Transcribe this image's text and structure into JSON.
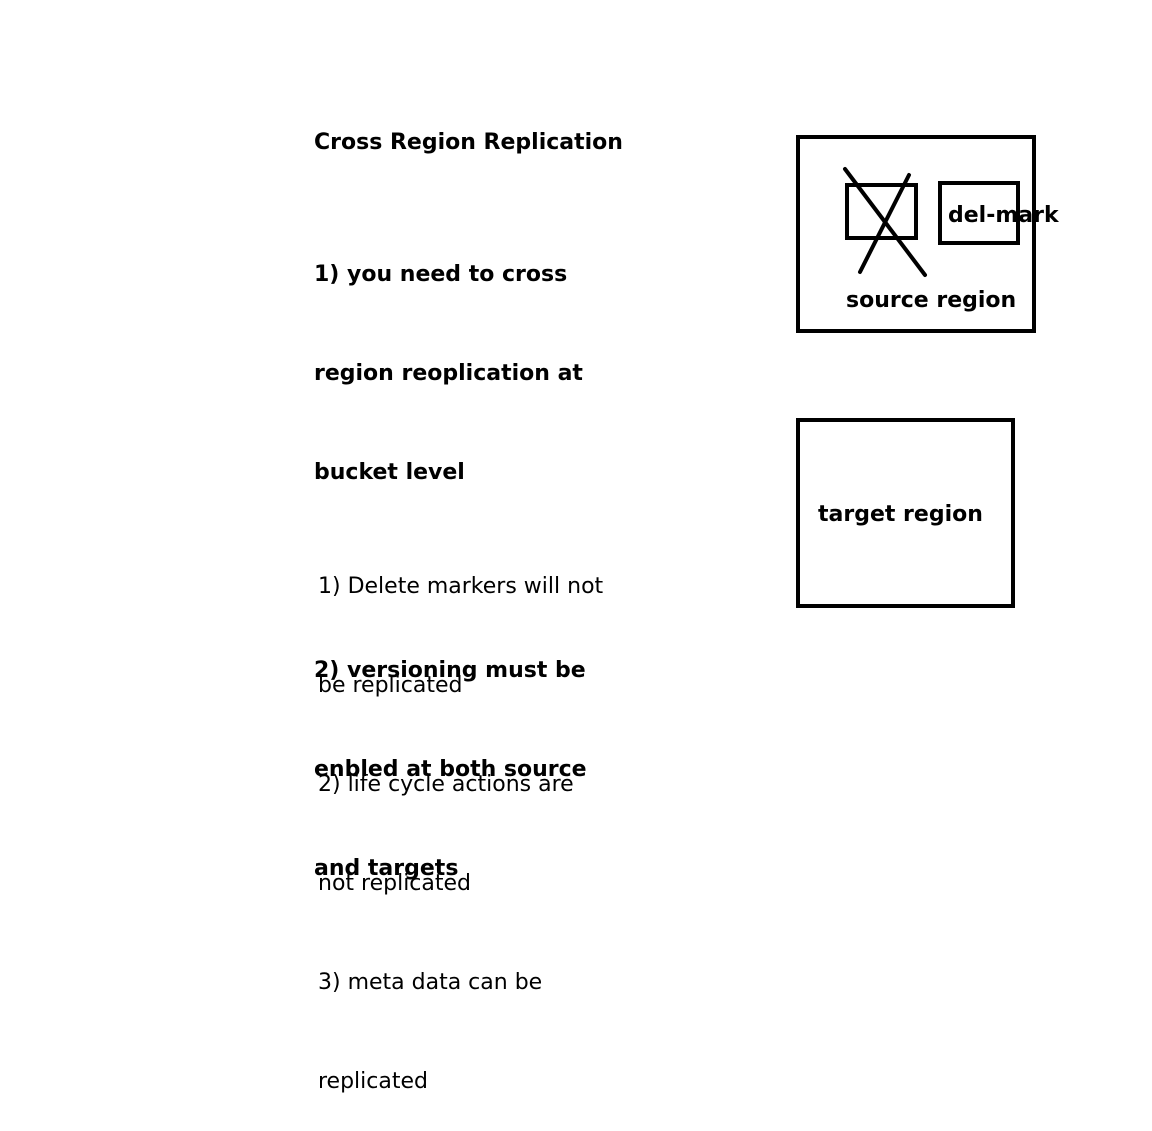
{
  "title": "Cross Region Replication",
  "bold_notes": [
    [
      "1) you need to cross",
      "region reoplication at",
      "bucket level"
    ],
    [
      "2) versioning must be",
      "enbled at both source",
      "and targets"
    ]
  ],
  "plain_notes": [
    "1) Delete markers will not",
    "be replicated",
    "2) life cycle actions are",
    "not replicated",
    "3) meta data can be",
    "replicated"
  ],
  "diagram": {
    "delete_marker_label": "del-mark",
    "source_label": "source region",
    "target_label": "target region"
  }
}
